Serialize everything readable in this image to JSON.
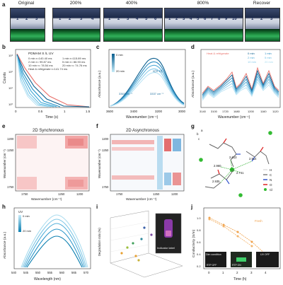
{
  "panel_labels": {
    "a": "a",
    "b": "b",
    "c": "c",
    "d": "d",
    "e": "e",
    "f": "f",
    "g": "g",
    "h": "h",
    "i": "i",
    "j": "j"
  },
  "panel_a": {
    "headers": [
      "Original",
      "200%",
      "400%",
      "800%",
      "Recover"
    ],
    "digits": {
      "original": [
        "1",
        "2",
        "3"
      ],
      "p200": [
        "1",
        "2",
        "3",
        "4"
      ],
      "p400": [
        "1",
        "2",
        "3",
        "4",
        "5",
        "6"
      ],
      "p800": [
        "1",
        "2",
        "3",
        "4",
        "5",
        "6",
        "7",
        "8",
        "9",
        "10"
      ],
      "recover": [
        "1",
        "2",
        "3"
      ]
    }
  },
  "panel_b": {
    "title": "PDMAM S /L UV",
    "legend_left": [
      "0 min   τ=140.40 ms",
      "2 min   τ= 99.87 ms",
      "10 min  τ= 78.54 ms",
      "Heat & refrigerate τ=141.74 ms"
    ],
    "legend_right": [
      "1 min   τ=115.89 ms",
      "5 min   τ= 86.93 ms",
      "20 min  τ= 74.76 ms"
    ],
    "ylabel": "Counts",
    "xlabel": "Time (s)",
    "xticks": [
      "0",
      "0.5",
      "1",
      "1.5"
    ],
    "yticks": [
      "10⁰",
      "10¹",
      "10²",
      "10³"
    ]
  },
  "panel_c": {
    "ylabel": "Absorbance (a.u.)",
    "xlabel": "Wavenumber (cm⁻¹)",
    "xticks": [
      "3600",
      "3400",
      "3200",
      "3000"
    ],
    "colorbar_top": "0 min",
    "colorbar_bottom": "20 min",
    "annotations": [
      "ν(O-H)",
      "3363 cm⁻¹",
      "3337 cm⁻¹"
    ]
  },
  "panel_d": {
    "legend": [
      "Heat & refrigerate",
      "0 min",
      "1 min",
      "2 min",
      "5 min",
      "10 min",
      "20 min"
    ],
    "ylabel": "Absorbance (a.u.)",
    "xlabel": "Wavenumber (cm⁻¹)",
    "xticks": [
      "3140",
      "3100",
      "1720",
      "1680",
      "1200",
      "1160",
      "1120"
    ]
  },
  "panel_e": {
    "title": "2D Synchronous",
    "ylabel": "Wavenumber (cm⁻¹)",
    "xlabel": "Wavenumber (cm⁻¹)",
    "xticks": [
      "1750",
      "1250",
      "1200"
    ],
    "yticks": [
      "1200",
      "1250",
      "1750"
    ]
  },
  "panel_f": {
    "title": "2D Asynchronous",
    "ylabel": "Wavenumber (cm⁻¹)",
    "xlabel": "Wavenumber (cm⁻¹)",
    "xticks": [
      "1750",
      "1250",
      "1200"
    ],
    "yticks": [
      "1200",
      "1250",
      "1750"
    ]
  },
  "panel_g": {
    "axes": [
      "a",
      "b",
      "c"
    ],
    "distances": [
      "2.613",
      "2.914",
      "2.960",
      "2.741",
      "2.935"
    ],
    "legend": [
      {
        "label": "H",
        "color": "#dddddd"
      },
      {
        "label": "C",
        "color": "#808080"
      },
      {
        "label": "N",
        "color": "#3355cc"
      },
      {
        "label": "O",
        "color": "#dd2222"
      },
      {
        "label": "Cl",
        "color": "#33bb33"
      }
    ]
  },
  "panel_h": {
    "legend_title": "UV",
    "colorbar_top": "0 min",
    "colorbar_bottom": "20 min",
    "ylabel": "Absorbance (a.u.)",
    "xlabel": "Wavelength (nm)",
    "xticks": [
      "540",
      "545",
      "550",
      "555",
      "560",
      "565",
      "570"
    ]
  },
  "panel_i": {
    "zlabel": "Degradation ratio (%)",
    "inset_label": "Indicator label"
  },
  "panel_j": {
    "ylabel": "Conductivity (S/m)",
    "xlabel": "Time (h)",
    "xticks": [
      "0",
      "1",
      "2",
      "3",
      "4"
    ],
    "yticks": [
      "0.2",
      "0.4",
      "0.6",
      "0.8",
      "1.0"
    ],
    "series_labels": [
      "Fresh",
      "RTP ON",
      "RTP OFF"
    ],
    "insets": [
      {
        "title": "Dim condition",
        "caption": "RTP OFF"
      },
      {
        "title": "",
        "caption": "RTP ON"
      },
      {
        "title": "UV OFF",
        "caption": ""
      }
    ]
  },
  "colors": {
    "accent": "#1f8fc4",
    "light": "#a9dcef",
    "orange": "#f0a14a",
    "heat": "#e8706a"
  }
}
